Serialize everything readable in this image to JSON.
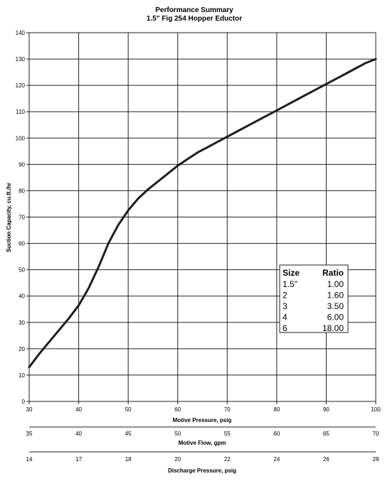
{
  "chart_data": {
    "type": "line",
    "title": "Performance Summary",
    "subtitle": "1.5\" Fig 254 Hopper Eductor",
    "ylabel": "Suction Capacity, cu.ft./hr",
    "xlabel": "Motive Pressure, psig",
    "xlim": [
      30,
      100
    ],
    "ylim": [
      0,
      140
    ],
    "xticks": [
      "30",
      "40",
      "50",
      "60",
      "70",
      "80",
      "90",
      "100"
    ],
    "yticks": [
      "0",
      "10",
      "20",
      "30",
      "40",
      "50",
      "60",
      "70",
      "80",
      "90",
      "100",
      "110",
      "120",
      "130",
      "140"
    ],
    "grid": true,
    "series": [
      {
        "x": [
          30,
          32,
          34,
          36,
          38,
          40,
          42,
          44,
          46,
          48,
          50,
          52,
          54,
          56,
          58,
          60,
          62,
          64,
          66,
          68,
          70,
          72,
          74,
          76,
          78,
          80,
          82,
          84,
          86,
          88,
          90,
          92,
          94,
          96,
          98,
          100
        ],
        "y": [
          13,
          18,
          22.5,
          27,
          31.5,
          36.5,
          43,
          51,
          60,
          67,
          72.5,
          77,
          80.5,
          83.5,
          86.5,
          89.5,
          92,
          94.5,
          96.5,
          98.5,
          100.5,
          102.5,
          104.5,
          106.5,
          108.5,
          110.5,
          112.5,
          114.5,
          116.5,
          118.5,
          120.5,
          122.5,
          124.5,
          126.5,
          128.5,
          130
        ]
      }
    ],
    "secondary_axes": [
      {
        "label": "Motive Flow, gpm",
        "ticks": [
          "35",
          "40",
          "45",
          "50",
          "55",
          "60",
          "65",
          "70"
        ]
      },
      {
        "label": "Discharge Pressure, psig",
        "ticks": [
          "14",
          "17",
          "18",
          "20",
          "22",
          "24",
          "26",
          "28"
        ]
      }
    ],
    "ratio_table": {
      "headers": [
        "Size",
        "Ratio"
      ],
      "rows": [
        [
          "1.5\"",
          "1.00"
        ],
        [
          "2",
          "1.60"
        ],
        [
          "3",
          "3.50"
        ],
        [
          "4",
          "6.00"
        ],
        [
          "6",
          "18.00"
        ]
      ]
    }
  }
}
